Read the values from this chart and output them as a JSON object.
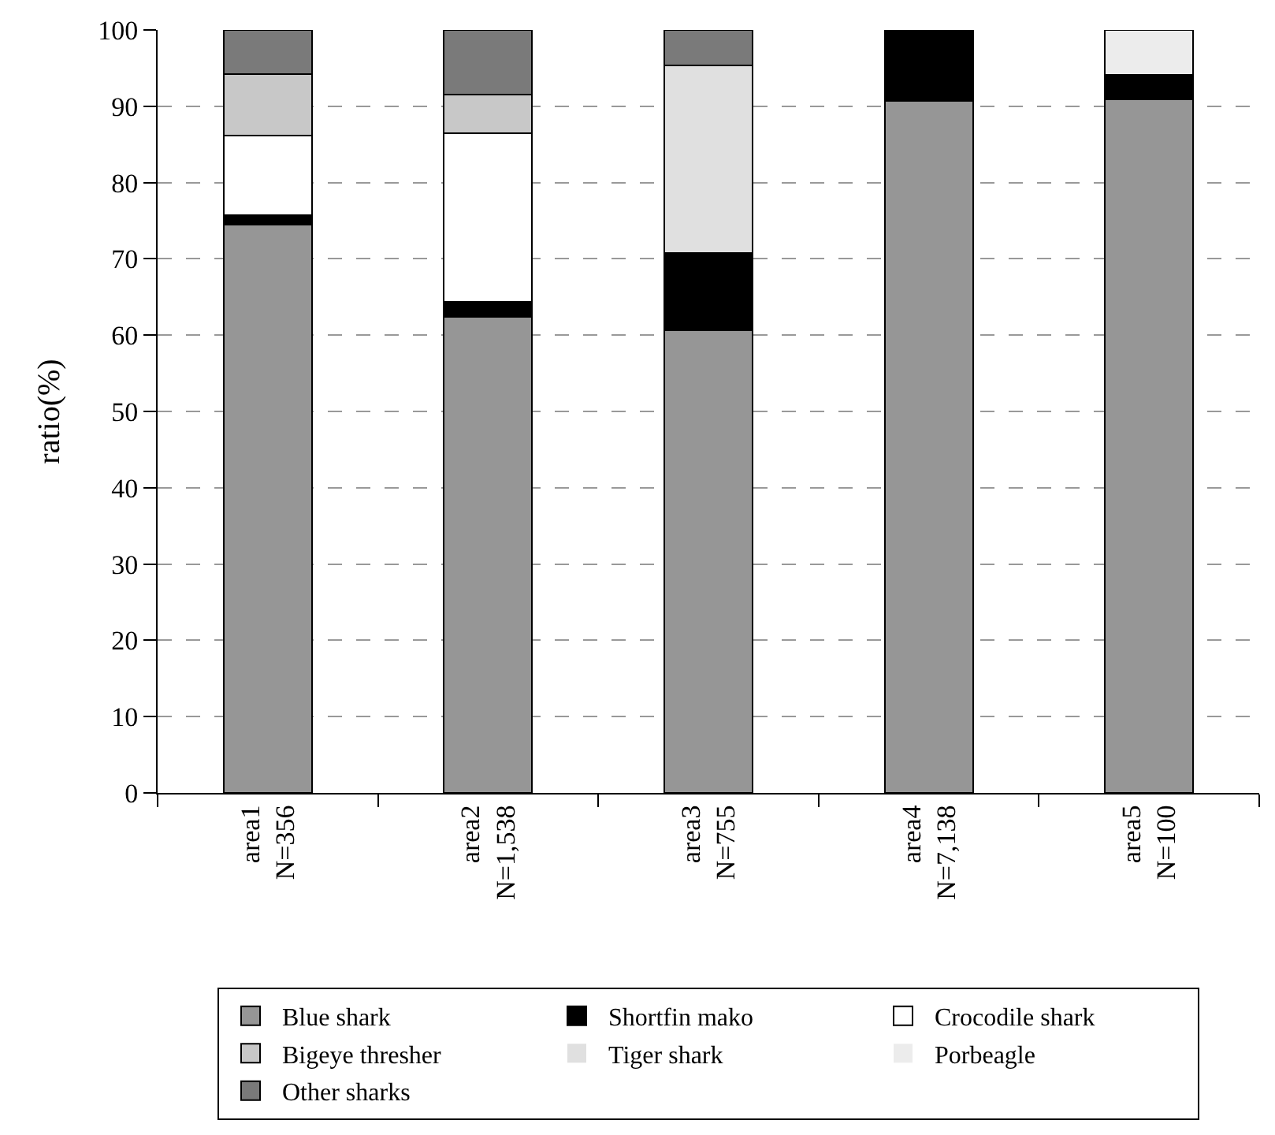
{
  "chart_data": {
    "type": "bar",
    "stacked": true,
    "ylabel": "ratio(%)",
    "categories": [
      "area1\nN=356",
      "area2\nN=1,538",
      "area3\nN=755",
      "area4\nN=7,138",
      "area5\nN=100"
    ],
    "series": [
      {
        "name": "Blue shark",
        "color": "#969696",
        "values": [
          74.5,
          62.4,
          60.6,
          90.7,
          90.9
        ]
      },
      {
        "name": "Shortfin mako",
        "color": "#000000",
        "values": [
          1.2,
          2.0,
          10.2,
          9.3,
          3.2
        ]
      },
      {
        "name": "Crocodile shark",
        "color": "#ffffff",
        "values": [
          10.5,
          22.1,
          0,
          0,
          0
        ]
      },
      {
        "name": "Bigeye thresher",
        "color": "#c8c8c8",
        "values": [
          8.0,
          5.0,
          0,
          0,
          0
        ]
      },
      {
        "name": "Tiger shark",
        "color": "#e0e0e0",
        "values": [
          0,
          0,
          24.6,
          0,
          0
        ]
      },
      {
        "name": "Porbeagle",
        "color": "#ececec",
        "values": [
          0,
          0,
          0,
          0,
          5.9
        ]
      },
      {
        "name": "Other sharks",
        "color": "#7a7a7a",
        "values": [
          5.8,
          8.5,
          4.6,
          0,
          0
        ]
      }
    ],
    "ylim": [
      0,
      100
    ],
    "yticks": [
      0,
      10,
      20,
      30,
      40,
      50,
      60,
      70,
      80,
      90,
      100
    ],
    "grid": "y",
    "legend": "bottom"
  }
}
